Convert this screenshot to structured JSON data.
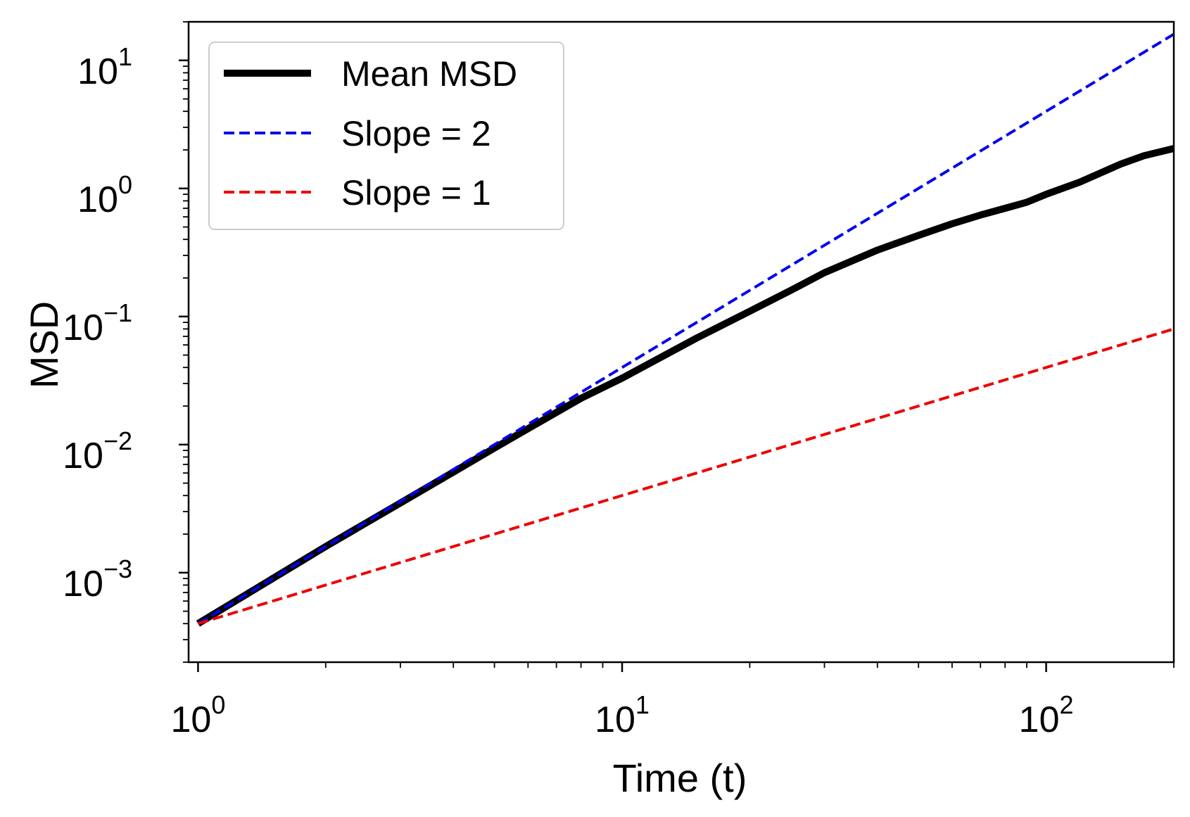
{
  "chart_data": {
    "type": "line",
    "xlabel": "Time (t)",
    "ylabel": "MSD",
    "xscale": "log",
    "yscale": "log",
    "xlim": [
      0.95,
      200
    ],
    "ylim": [
      0.0002,
      20
    ],
    "x_ticks": [
      {
        "value": 1,
        "base": "10",
        "exp": "0"
      },
      {
        "value": 10,
        "base": "10",
        "exp": "1"
      },
      {
        "value": 100,
        "base": "10",
        "exp": "2"
      }
    ],
    "y_ticks": [
      {
        "value": 0.001,
        "base": "10",
        "exp": "−3"
      },
      {
        "value": 0.01,
        "base": "10",
        "exp": "−2"
      },
      {
        "value": 0.1,
        "base": "10",
        "exp": "−1"
      },
      {
        "value": 1,
        "base": "10",
        "exp": "0"
      },
      {
        "value": 10,
        "base": "10",
        "exp": "1"
      }
    ],
    "legend_position": "top-left",
    "grid": false,
    "series": [
      {
        "name": "Mean MSD",
        "color": "#000000",
        "style": "solid",
        "x": [
          1,
          2,
          3,
          4,
          5,
          6,
          8,
          10,
          15,
          20,
          25,
          30,
          40,
          50,
          60,
          70,
          80,
          90,
          100,
          120,
          150,
          170,
          200
        ],
        "y": [
          0.0004,
          0.0016,
          0.0035,
          0.0061,
          0.0094,
          0.0133,
          0.023,
          0.033,
          0.068,
          0.11,
          0.16,
          0.22,
          0.33,
          0.43,
          0.53,
          0.62,
          0.7,
          0.78,
          0.9,
          1.12,
          1.55,
          1.8,
          2.05
        ]
      },
      {
        "name": "Slope = 2",
        "color": "#0000ee",
        "style": "dashed",
        "x": [
          1,
          200
        ],
        "y": [
          0.0004,
          16
        ]
      },
      {
        "name": "Slope = 1",
        "color": "#ee0000",
        "style": "dashed",
        "x": [
          1,
          200
        ],
        "y": [
          0.0004,
          0.08
        ]
      }
    ]
  }
}
